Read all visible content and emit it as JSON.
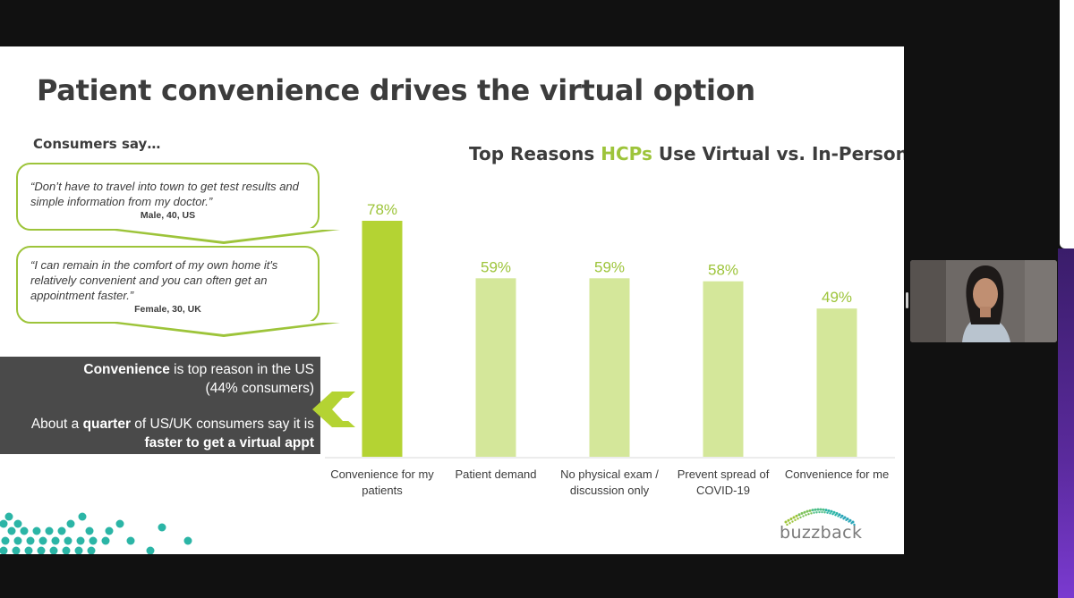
{
  "slide": {
    "title": "Patient convenience drives the virtual option",
    "consumers_heading": "Consumers say…",
    "quotes": [
      {
        "text": "“Don’t have to travel into town to get test results and simple information from my doctor.”",
        "attribution": "Male, 40, US"
      },
      {
        "text": "“I can remain in the comfort of my own home it's relatively convenient and you can often get an appointment faster.”",
        "attribution": "Female, 30, UK"
      }
    ],
    "callout": {
      "line1_highlight": "Convenience",
      "line1_rest": " is top reason in the US",
      "line2": "(44% consumers)",
      "line3_start": "About a ",
      "line3_highlight": "quarter",
      "line3_rest": " of US/UK consumers say it is",
      "line4": "faster to get a virtual appt"
    },
    "chart_title_start": "Top Reasons ",
    "chart_title_accent": "HCPs",
    "chart_title_end": " Use Virtual vs. In-Person",
    "logo_text": "buzzback"
  },
  "chart_data": {
    "type": "bar",
    "title": "Top Reasons HCPs Use Virtual vs. In-Person",
    "categories": [
      [
        "Convenience for my",
        "patients"
      ],
      [
        "Patient demand"
      ],
      [
        "No physical exam /",
        "discussion only"
      ],
      [
        "Prevent spread of",
        "COVID-19"
      ],
      [
        "Convenience for me"
      ]
    ],
    "values": [
      78,
      59,
      59,
      58,
      49
    ],
    "value_labels": [
      "78%",
      "59%",
      "59%",
      "58%",
      "49%"
    ],
    "highlight_index": 0,
    "ylim": [
      0,
      78
    ],
    "grid": false,
    "legend": "none"
  },
  "colors": {
    "highlight_bar": "#b4d333",
    "bar": "#d4e79a",
    "label": "#9dc43a",
    "dots": "#2bb5a6"
  }
}
